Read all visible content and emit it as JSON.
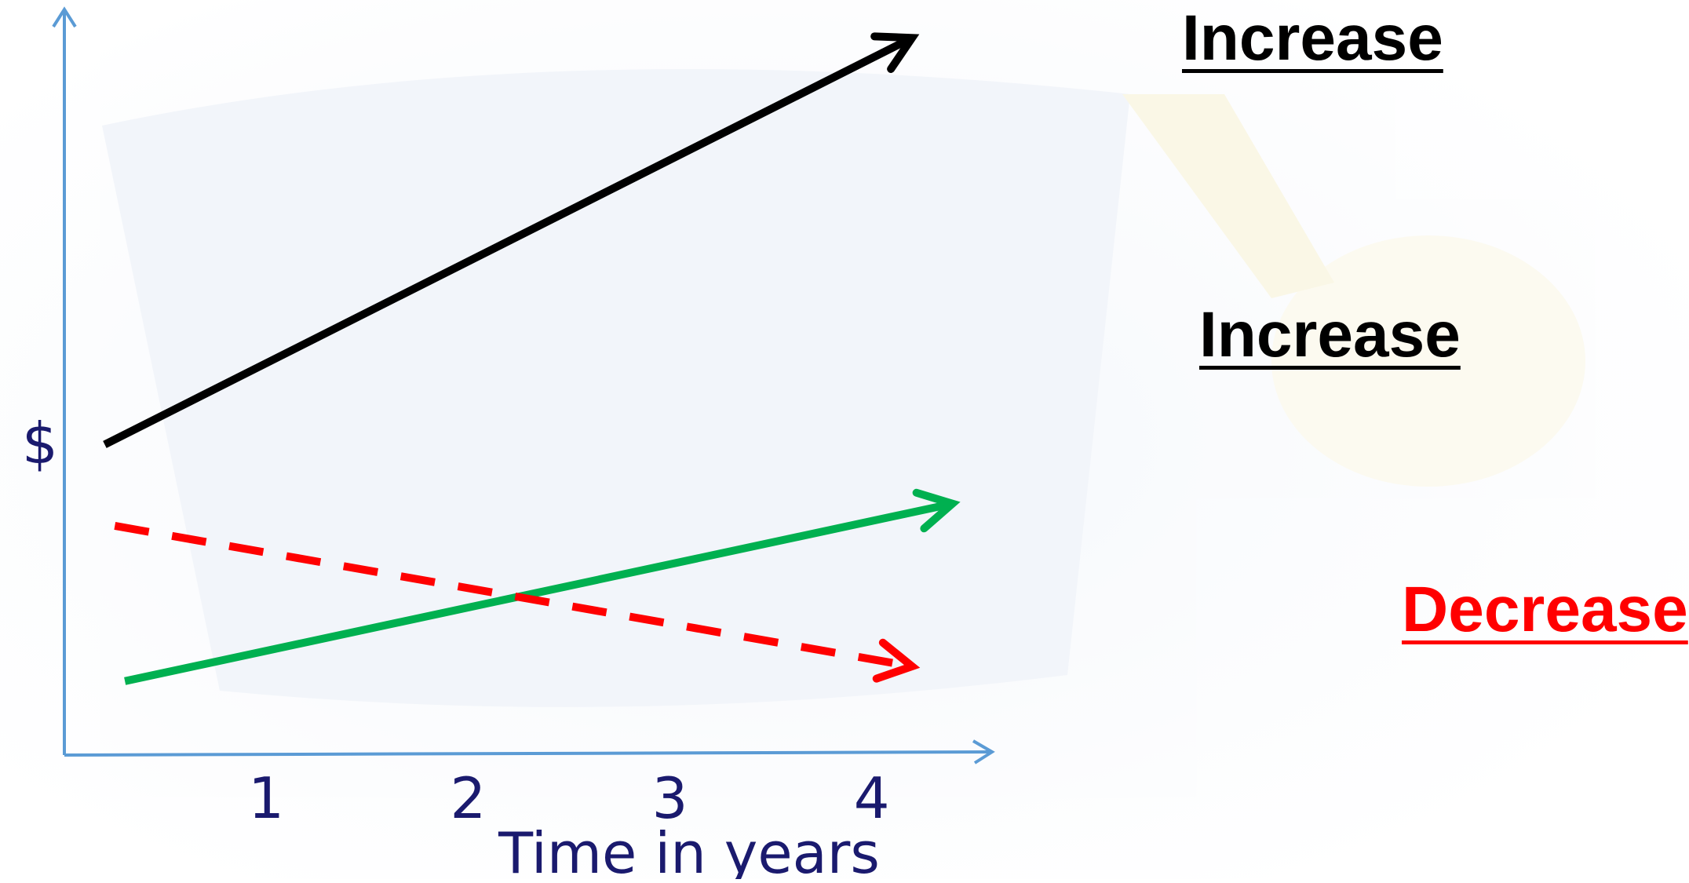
{
  "chart_data": {
    "type": "line",
    "ylabel": "$",
    "xlabel": "Time in years",
    "x_ticks": [
      "1",
      "2",
      "3",
      "4"
    ],
    "xlim": [
      0,
      4.6
    ],
    "ylim": [
      0,
      10
    ],
    "grid": false,
    "series": [
      {
        "color": "#000000",
        "style": "solid",
        "x": [
          0.2,
          4.2
        ],
        "y": [
          4.2,
          9.7
        ]
      },
      {
        "color": "#00b050",
        "style": "solid",
        "x": [
          0.3,
          4.4
        ],
        "y": [
          1.0,
          3.4
        ]
      },
      {
        "color": "#ff0000",
        "style": "dashed",
        "x": [
          0.25,
          4.2
        ],
        "y": [
          3.1,
          1.2
        ]
      }
    ],
    "annotations": [
      {
        "text": "Increase",
        "color": "#000000"
      },
      {
        "text": "Increase",
        "color": "#000000"
      },
      {
        "text": "Decrease",
        "color": "#ff0000"
      }
    ]
  },
  "colors": {
    "axis": "#5b9bd5",
    "text": "#1a1a6e"
  }
}
